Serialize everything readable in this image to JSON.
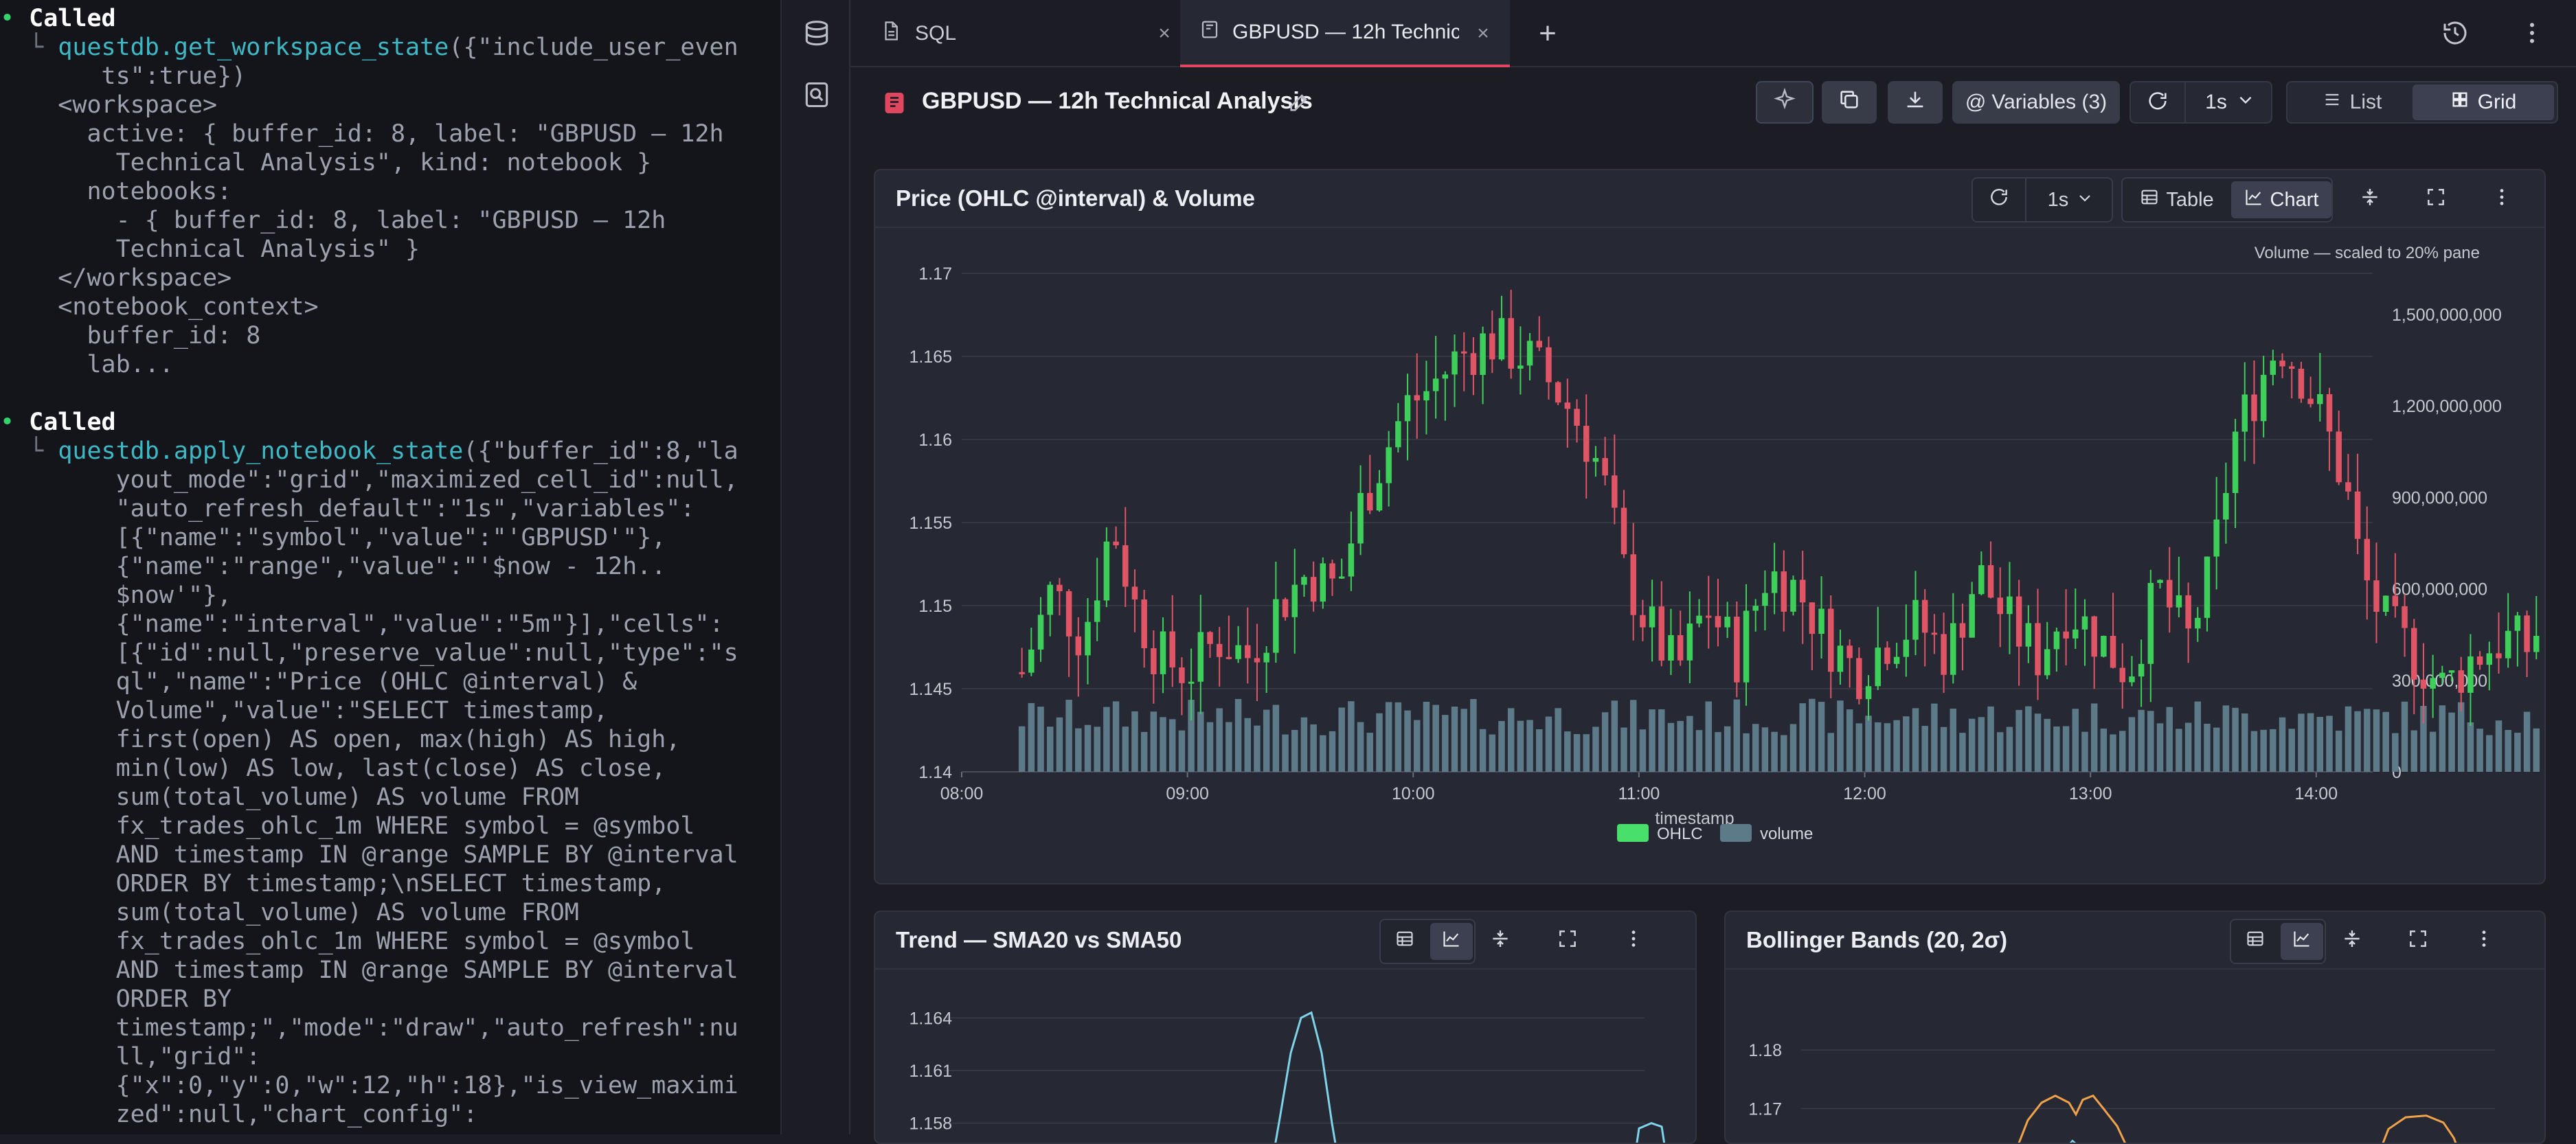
{
  "log": {
    "lines": [
      {
        "dot": "•",
        "called": "Called"
      },
      {
        "tree": "└ ",
        "fn": "questdb.get_workspace_state",
        "txt": "({\"include_user_even"
      },
      {
        "txt": "     ts\":true})"
      },
      {
        "txt": "  <workspace>"
      },
      {
        "txt": "    active: { buffer_id: 8, label: \"GBPUSD — 12h"
      },
      {
        "txt": "      Technical Analysis\", kind: notebook }"
      },
      {
        "txt": "    notebooks:"
      },
      {
        "txt": "      - { buffer_id: 8, label: \"GBPUSD — 12h"
      },
      {
        "txt": "      Technical Analysis\" }"
      },
      {
        "txt": "  </workspace>"
      },
      {
        "txt": "  <notebook_context>"
      },
      {
        "txt": "    buffer_id: 8"
      },
      {
        "txt": "    lab..."
      },
      {
        "txt": ""
      },
      {
        "dot": "•",
        "called": "Called"
      },
      {
        "tree": "└ ",
        "fn": "questdb.apply_notebook_state",
        "txt": "({\"buffer_id\":8,\"la"
      },
      {
        "txt": "      yout_mode\":\"grid\",\"maximized_cell_id\":null,"
      },
      {
        "txt": "      \"auto_refresh_default\":\"1s\",\"variables\":"
      },
      {
        "txt": "      [{\"name\":\"symbol\",\"value\":\"'GBPUSD'\"},"
      },
      {
        "txt": "      {\"name\":\"range\",\"value\":\"'$now - 12h.."
      },
      {
        "txt": "      $now'\"},"
      },
      {
        "txt": "      {\"name\":\"interval\",\"value\":\"5m\"}],\"cells\":"
      },
      {
        "txt": "      [{\"id\":null,\"preserve_value\":null,\"type\":\"s"
      },
      {
        "txt": "      ql\",\"name\":\"Price (OHLC @interval) &"
      },
      {
        "txt": "      Volume\",\"value\":\"SELECT timestamp,"
      },
      {
        "txt": "      first(open) AS open, max(high) AS high,"
      },
      {
        "txt": "      min(low) AS low, last(close) AS close,"
      },
      {
        "txt": "      sum(total_volume) AS volume FROM"
      },
      {
        "txt": "      fx_trades_ohlc_1m WHERE symbol = @symbol"
      },
      {
        "txt": "      AND timestamp IN @range SAMPLE BY @interval"
      },
      {
        "txt": "      ORDER BY timestamp;\\nSELECT timestamp,"
      },
      {
        "txt": "      sum(total_volume) AS volume FROM"
      },
      {
        "txt": "      fx_trades_ohlc_1m WHERE symbol = @symbol"
      },
      {
        "txt": "      AND timestamp IN @range SAMPLE BY @interval"
      },
      {
        "txt": "      ORDER BY"
      },
      {
        "txt": "      timestamp;\",\"mode\":\"draw\",\"auto_refresh\":nu"
      },
      {
        "txt": "      ll,\"grid\":"
      },
      {
        "txt": "      {\"x\":0,\"y\":0,\"w\":12,\"h\":18},\"is_view_maximi"
      },
      {
        "txt": "      zed\":null,\"chart_config\":"
      }
    ]
  },
  "rail": {
    "items": [
      "database-icon",
      "search-doc-icon"
    ]
  },
  "tabs": [
    {
      "label": "SQL",
      "icon": "document-icon",
      "close": "×"
    },
    {
      "label": "GBPUSD — 12h Technical Analysis",
      "icon": "notebook-icon",
      "close": "×"
    }
  ],
  "tabbar": {
    "add": "+"
  },
  "toolbar": {
    "title": "GBPUSD — 12h Technical Analysis",
    "variables_label": "Variables (3)",
    "refresh_interval": "1s",
    "list_label": "List",
    "grid_label": "Grid"
  },
  "cells": {
    "price": {
      "title": "Price (OHLC @interval) & Volume",
      "interval": "1s",
      "table_label": "Table",
      "chart_label": "Chart"
    },
    "trend": {
      "title": "Trend — SMA20 vs SMA50"
    },
    "bollinger": {
      "title": "Bollinger Bands (20, 2σ)"
    }
  },
  "chart_data": [
    {
      "type": "candlestick",
      "title": "Price (OHLC @interval) & Volume",
      "xlabel": "timestamp",
      "annotation": "Volume — scaled to 20% pane",
      "x_ticks": [
        "08:00",
        "09:00",
        "10:00",
        "11:00",
        "12:00",
        "13:00",
        "14:00"
      ],
      "y_ticks": [
        "1.14",
        "1.145",
        "1.15",
        "1.155",
        "1.16",
        "1.165",
        "1.17"
      ],
      "y2_ticks": [
        "0",
        "300,000,000",
        "600,000,000",
        "900,000,000",
        "1,200,000,000",
        "1,500,000,000"
      ],
      "ylim": [
        1.14,
        1.17
      ],
      "y2lim": [
        0,
        1500000000
      ],
      "legend": [
        {
          "name": "OHLC",
          "color": "#48e06a"
        },
        {
          "name": "volume",
          "color": "#5d7a89"
        }
      ],
      "legend_position": "bottom-center",
      "x_range_minutes": [
        0,
        375
      ],
      "candle_step_minutes": 5,
      "close_path": [
        [
          0,
          1.1435
        ],
        [
          8,
          1.147
        ],
        [
          16,
          1.146
        ],
        [
          24,
          1.151
        ],
        [
          32,
          1.148
        ],
        [
          40,
          1.155
        ],
        [
          46,
          1.15
        ],
        [
          52,
          1.147
        ],
        [
          60,
          1.146
        ],
        [
          68,
          1.148
        ],
        [
          76,
          1.147
        ],
        [
          84,
          1.15
        ],
        [
          92,
          1.152
        ],
        [
          100,
          1.151
        ],
        [
          106,
          1.156
        ],
        [
          112,
          1.159
        ],
        [
          118,
          1.162
        ],
        [
          124,
          1.163
        ],
        [
          132,
          1.165
        ],
        [
          140,
          1.166
        ],
        [
          150,
          1.165
        ],
        [
          158,
          1.163
        ],
        [
          164,
          1.161
        ],
        [
          170,
          1.158
        ],
        [
          176,
          1.152
        ],
        [
          182,
          1.149
        ],
        [
          190,
          1.146
        ],
        [
          198,
          1.15
        ],
        [
          206,
          1.147
        ],
        [
          214,
          1.152
        ],
        [
          222,
          1.151
        ],
        [
          230,
          1.148
        ],
        [
          238,
          1.146
        ],
        [
          246,
          1.148
        ],
        [
          254,
          1.149
        ],
        [
          262,
          1.147
        ],
        [
          270,
          1.152
        ],
        [
          278,
          1.149
        ],
        [
          286,
          1.147
        ],
        [
          294,
          1.15
        ],
        [
          302,
          1.148
        ],
        [
          310,
          1.146
        ],
        [
          318,
          1.151
        ],
        [
          326,
          1.148
        ],
        [
          332,
          1.152
        ],
        [
          338,
          1.16
        ],
        [
          344,
          1.163
        ],
        [
          350,
          1.166
        ],
        [
          356,
          1.164
        ],
        [
          362,
          1.161
        ],
        [
          368,
          1.157
        ],
        [
          372,
          1.152
        ],
        [
          378,
          1.149
        ],
        [
          386,
          1.147
        ],
        [
          394,
          1.145
        ],
        [
          402,
          1.147
        ],
        [
          410,
          1.148
        ],
        [
          416,
          1.1475
        ],
        [
          420,
          1.149
        ]
      ],
      "volume_range": [
        120000000,
        240000000
      ],
      "colors": {
        "up": "#3ecf5a",
        "down": "#e05566",
        "volume": "#5d7a89"
      }
    },
    {
      "type": "line",
      "title": "Trend — SMA20 vs SMA50",
      "y_ticks": [
        "1.164",
        "1.161",
        "1.158"
      ],
      "ylim": [
        1.1565,
        1.1655
      ],
      "series": [
        {
          "color": "#7fd3e8"
        }
      ]
    },
    {
      "type": "line",
      "title": "Bollinger Bands (20, 2σ)",
      "y_ticks": [
        "1.18",
        "1.17"
      ],
      "ylim": [
        1.163,
        1.19
      ],
      "series": [
        {
          "color": "#f0a24a"
        },
        {
          "color": "#7fd3e8"
        }
      ]
    }
  ]
}
